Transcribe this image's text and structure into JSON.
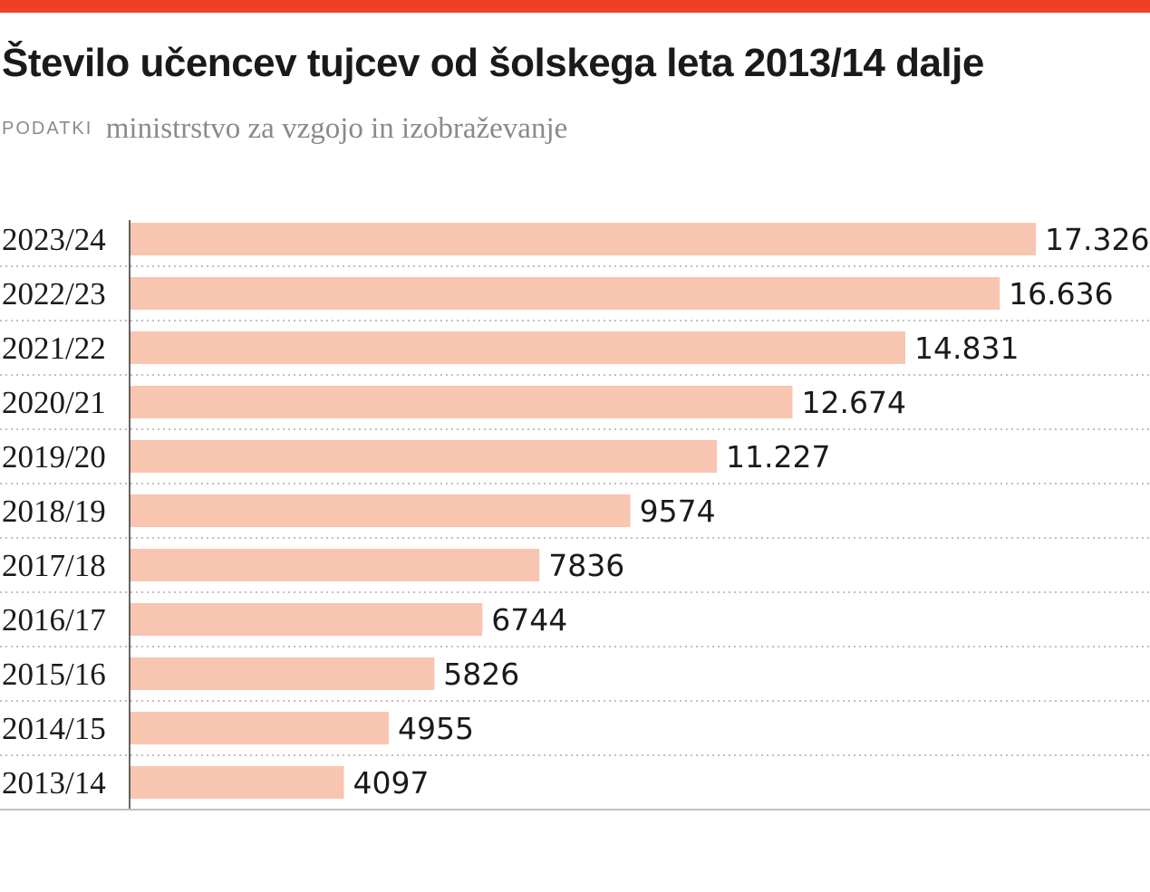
{
  "colors": {
    "accent": "#ee4027",
    "bar": "#f8c5b1",
    "axis": "#333333",
    "grid": "#aaaaaa"
  },
  "header": {
    "title": "Število učencev tujcev od šolskega leta 2013/14 dalje",
    "source_label": "PODATKI",
    "source_text": "ministrstvo za vzgojo in izobraževanje"
  },
  "chart_data": {
    "type": "bar",
    "orientation": "horizontal",
    "title": "Število učencev tujcev od šolskega leta 2013/14 dalje",
    "categories": [
      "2023/24",
      "2022/23",
      "2021/22",
      "2020/21",
      "2019/20",
      "2018/19",
      "2017/18",
      "2016/17",
      "2015/16",
      "2014/15",
      "2013/14"
    ],
    "values": [
      17326,
      16636,
      14831,
      12674,
      11227,
      9574,
      7836,
      6744,
      5826,
      4955,
      4097
    ],
    "value_labels": [
      "17.326",
      "16.636",
      "14.831",
      "12.674",
      "11.227",
      "9574",
      "7836",
      "6744",
      "5826",
      "4955",
      "4097"
    ],
    "xlabel": "",
    "ylabel": "",
    "grid": "dotted row separators",
    "legend": "none"
  }
}
